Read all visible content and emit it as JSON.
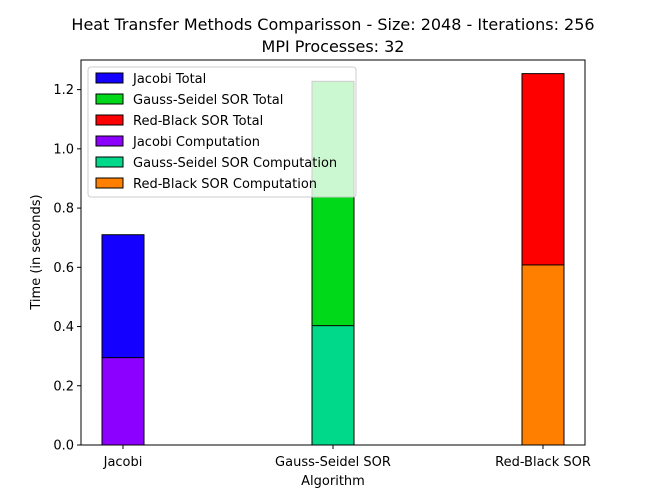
{
  "chart_data": {
    "type": "bar",
    "title_line1": "Heat Transfer Methods Comparisson - Size: 2048 - Iterations: 256",
    "title_line2": "MPI Processes: 32",
    "xlabel": "Algorithm",
    "ylabel": "Time (in seconds)",
    "categories": [
      "Jacobi",
      "Gauss-Seidel SOR",
      "Red-Black SOR"
    ],
    "ylim": [
      0,
      1.3
    ],
    "yticks": [
      0.0,
      0.2,
      0.4,
      0.6,
      0.8,
      1.0,
      1.2
    ],
    "ytick_labels": [
      "0.0",
      "0.2",
      "0.4",
      "0.6",
      "0.8",
      "1.0",
      "1.2"
    ],
    "legend_placement": "top-left",
    "grid": false,
    "series": [
      {
        "name": "Jacobi Total",
        "category": "Jacobi",
        "value": 0.71,
        "color": "#1400ff",
        "kind": "total"
      },
      {
        "name": "Gauss-Seidel SOR Total",
        "category": "Gauss-Seidel SOR",
        "value": 1.228,
        "color": "#00d919",
        "kind": "total"
      },
      {
        "name": "Red-Black SOR Total",
        "category": "Red-Black SOR",
        "value": 1.254,
        "color": "#ff0000",
        "kind": "total"
      },
      {
        "name": "Jacobi Computation",
        "category": "Jacobi",
        "value": 0.295,
        "color": "#8b00ff",
        "kind": "computation"
      },
      {
        "name": "Gauss-Seidel SOR Computation",
        "category": "Gauss-Seidel SOR",
        "value": 0.403,
        "color": "#00d98a",
        "kind": "computation"
      },
      {
        "name": "Red-Black SOR Computation",
        "category": "Red-Black SOR",
        "value": 0.608,
        "color": "#ff8000",
        "kind": "computation"
      }
    ]
  }
}
